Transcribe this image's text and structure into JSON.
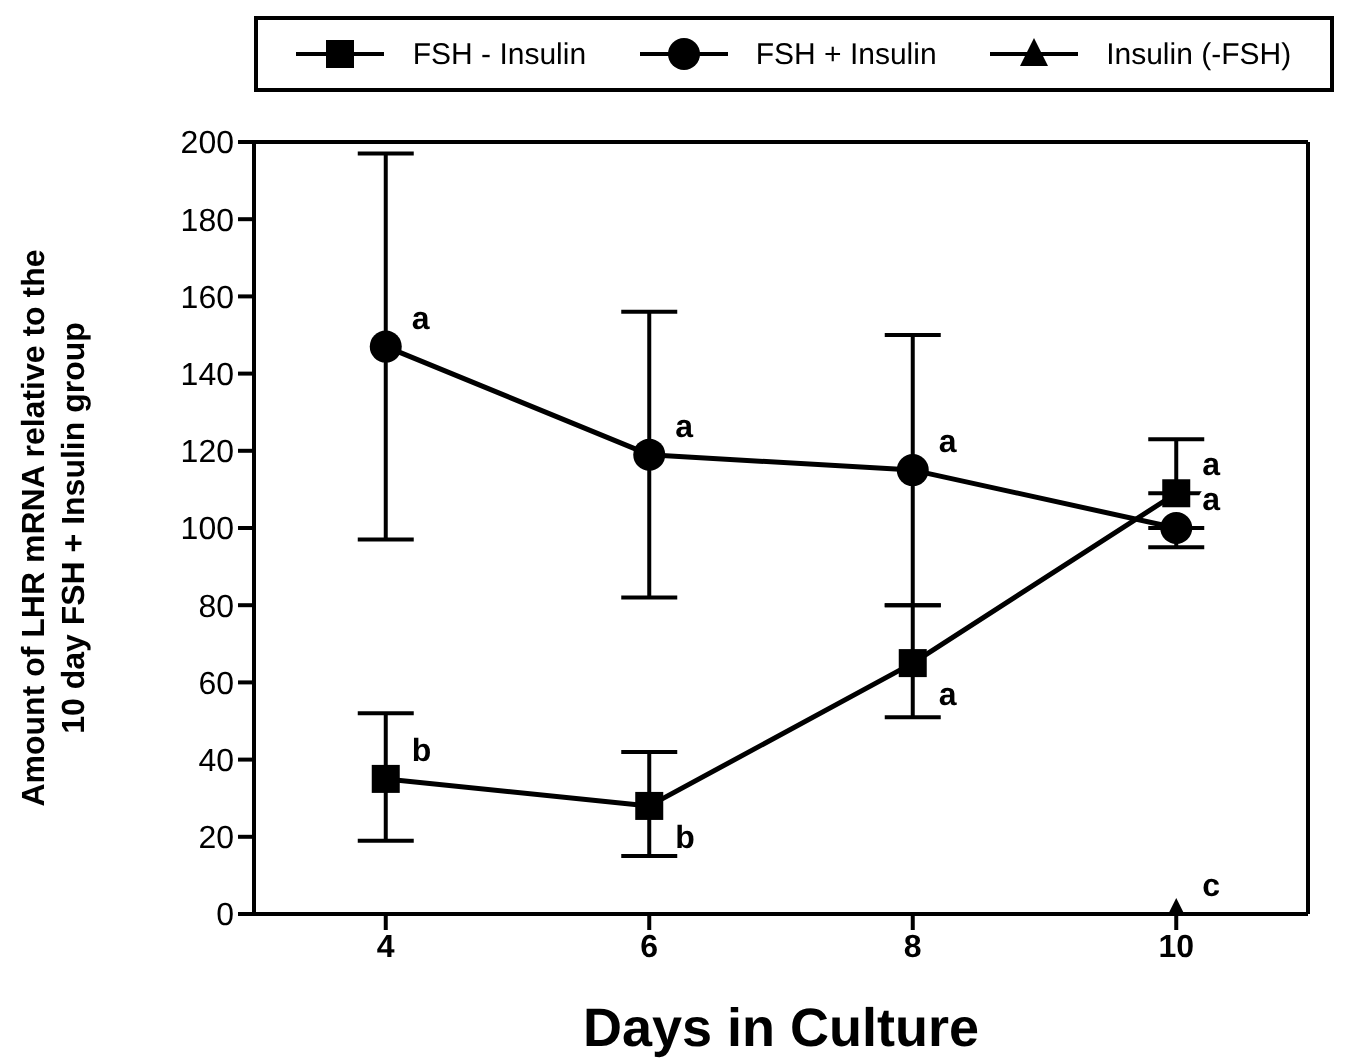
{
  "chart_data": {
    "type": "line",
    "xlabel": "Days in Culture",
    "ylabel": "Amount of LHR mRNA relative to the\n10 day FSH + Insulin group",
    "xlim": [
      3,
      11
    ],
    "xticks": [
      4,
      6,
      8,
      10
    ],
    "ylim": [
      0,
      200
    ],
    "yticks": [
      0,
      20,
      40,
      60,
      80,
      100,
      120,
      140,
      160,
      180,
      200
    ],
    "grid": false,
    "legend": "top",
    "series": [
      {
        "name": "FSH - Insulin",
        "color": "#000000",
        "marker": "square",
        "x": [
          4,
          6,
          8,
          10
        ],
        "values": [
          35,
          28,
          65,
          109
        ],
        "errors": [
          [
            19,
            52
          ],
          [
            15,
            42
          ],
          [
            51,
            80
          ],
          [
            109,
            123
          ]
        ]
      },
      {
        "name": "FSH + Insulin",
        "color": "#000000",
        "marker": "circle",
        "x": [
          4,
          6,
          8,
          10
        ],
        "values": [
          147,
          119,
          115,
          100
        ],
        "errors": [
          [
            97,
            197
          ],
          [
            82,
            156
          ],
          [
            80,
            150
          ],
          [
            95,
            100
          ]
        ]
      },
      {
        "name": "Insulin (-FSH)",
        "color": "#000000",
        "marker": "triangle",
        "x": [
          10
        ],
        "values": [
          0
        ]
      }
    ],
    "annotations": [
      {
        "text": "b",
        "x": 4,
        "y": 35
      },
      {
        "text": "b",
        "x": 6,
        "y": 28
      },
      {
        "text": "a",
        "x": 8,
        "y": 65
      },
      {
        "text": "a",
        "x": 10,
        "y": 109
      },
      {
        "text": "a",
        "x": 4,
        "y": 147
      },
      {
        "text": "a",
        "x": 6,
        "y": 119
      },
      {
        "text": "a",
        "x": 8,
        "y": 115
      },
      {
        "text": "a",
        "x": 10,
        "y": 100
      },
      {
        "text": "c",
        "x": 10,
        "y": 0
      }
    ]
  }
}
